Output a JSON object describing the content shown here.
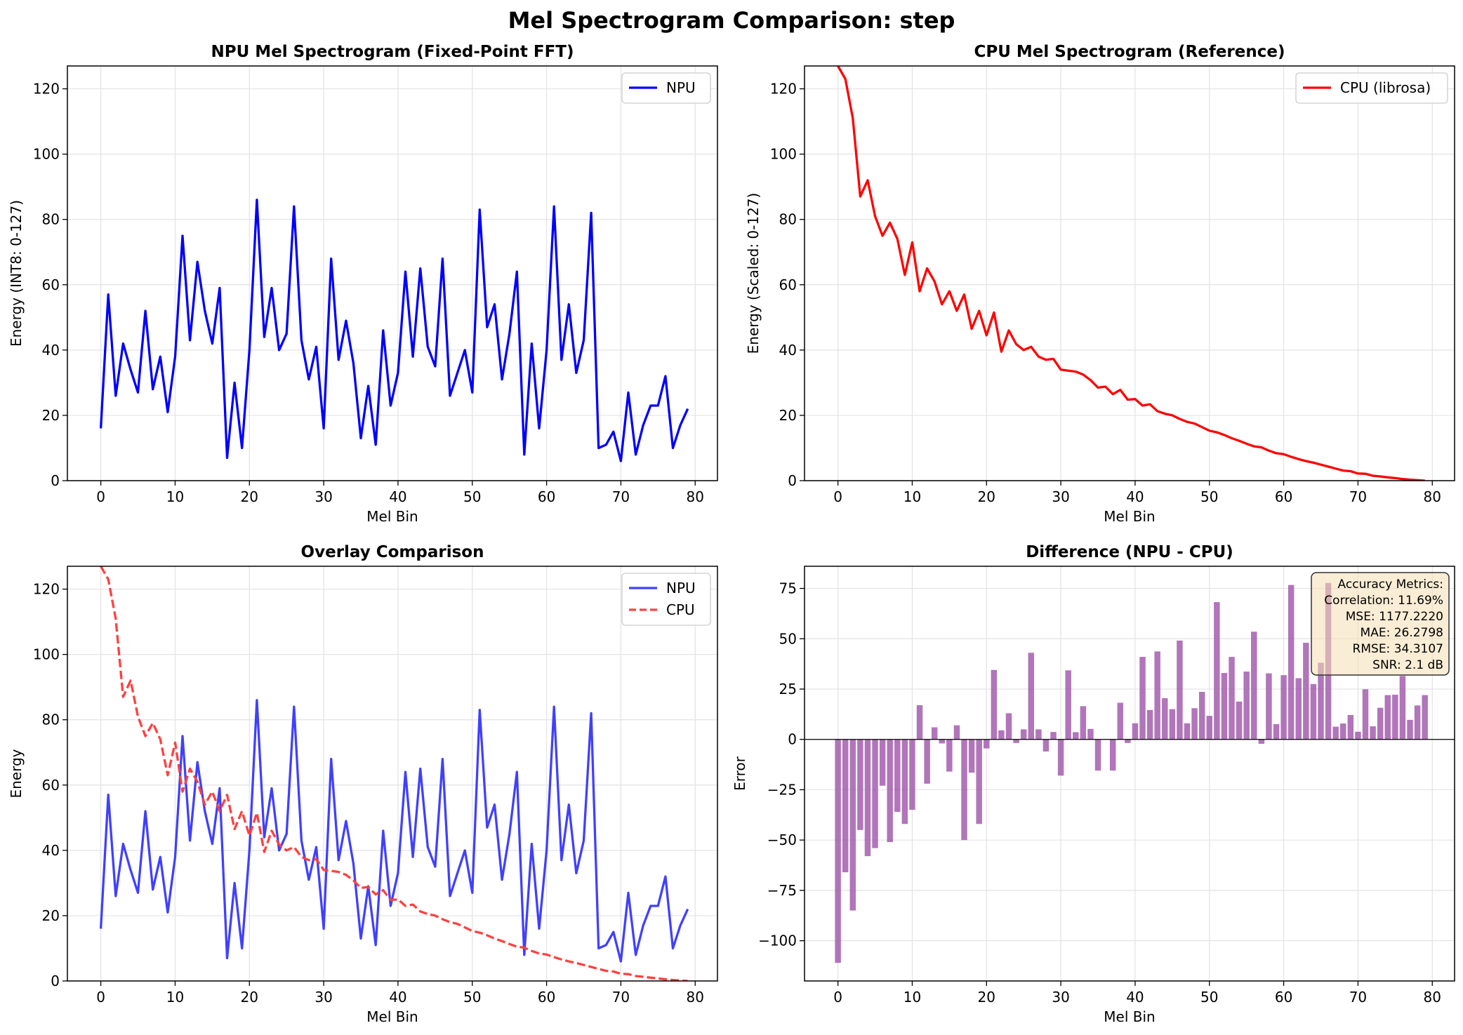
{
  "title": "Mel Spectrogram Comparison: step",
  "chart_data": [
    {
      "type": "line",
      "title": "NPU Mel Spectrogram (Fixed-Point FFT)",
      "xlabel": "Mel Bin",
      "ylabel": "Energy (INT8: 0-127)",
      "xlim": [
        -4.5,
        83
      ],
      "ylim": [
        0,
        127
      ],
      "xticks": [
        0,
        10,
        20,
        30,
        40,
        50,
        60,
        70,
        80
      ],
      "yticks": [
        0,
        20,
        40,
        60,
        80,
        100,
        120
      ],
      "grid": true,
      "legend_position": "upper right",
      "series": [
        {
          "name": "NPU",
          "color": "#0000ff",
          "style": "solid",
          "values": [
            16,
            57,
            26,
            42,
            34,
            27,
            52,
            28,
            38,
            21,
            38,
            75,
            43,
            67,
            52,
            42,
            59,
            7,
            30,
            10,
            40,
            86,
            44,
            59,
            40,
            45,
            84,
            43,
            31,
            41,
            16,
            68,
            37,
            49,
            36,
            13,
            29,
            11,
            46,
            23,
            33,
            64,
            38,
            65,
            41,
            35,
            68,
            26,
            33,
            40,
            27,
            83,
            47,
            54,
            31,
            45,
            64,
            8,
            42,
            16,
            40,
            84,
            37,
            54,
            33,
            43,
            82,
            10,
            11,
            15,
            6,
            27,
            8,
            17,
            23,
            23,
            32,
            10,
            17,
            22
          ]
        }
      ]
    },
    {
      "type": "line",
      "title": "CPU Mel Spectrogram (Reference)",
      "xlabel": "Mel Bin",
      "ylabel": "Energy (Scaled: 0-127)",
      "xlim": [
        -4.5,
        83
      ],
      "ylim": [
        0,
        127
      ],
      "xticks": [
        0,
        10,
        20,
        30,
        40,
        50,
        60,
        70,
        80
      ],
      "yticks": [
        0,
        20,
        40,
        60,
        80,
        100,
        120
      ],
      "grid": true,
      "legend_position": "upper right",
      "series": [
        {
          "name": "CPU (librosa)",
          "color": "#ff0000",
          "style": "solid",
          "values": [
            127,
            123,
            111,
            87,
            92,
            81,
            75,
            79,
            74,
            63,
            73,
            58,
            65,
            61,
            54,
            58,
            52,
            57,
            46.5,
            52,
            44.5,
            51.5,
            39.5,
            46,
            41.8,
            40,
            41,
            38,
            37,
            37.3,
            34,
            33.7,
            33.4,
            32.5,
            30.8,
            28.5,
            28.8,
            26.5,
            27.8,
            24.8,
            25,
            23,
            23.4,
            21.3,
            20.5,
            20,
            18.9,
            18,
            17.5,
            16.4,
            15.3,
            14.8,
            14,
            13,
            12.2,
            11.3,
            10.5,
            10.2,
            9.2,
            8.4,
            8.1,
            7.3,
            6.6,
            6,
            5.5,
            4.9,
            4.3,
            3.7,
            3.1,
            2.9,
            2.2,
            2.1,
            1.5,
            1.3,
            1,
            0.8,
            0.5,
            0.3,
            0.15,
            0
          ]
        }
      ]
    },
    {
      "type": "line",
      "title": "Overlay Comparison",
      "xlabel": "Mel Bin",
      "ylabel": "Energy",
      "xlim": [
        -4.5,
        83
      ],
      "ylim": [
        0,
        127
      ],
      "xticks": [
        0,
        10,
        20,
        30,
        40,
        50,
        60,
        70,
        80
      ],
      "yticks": [
        0,
        20,
        40,
        60,
        80,
        100,
        120
      ],
      "grid": true,
      "legend_position": "upper right",
      "series": [
        {
          "name": "NPU",
          "color": "#4040ff",
          "style": "solid",
          "values": [
            16,
            57,
            26,
            42,
            34,
            27,
            52,
            28,
            38,
            21,
            38,
            75,
            43,
            67,
            52,
            42,
            59,
            7,
            30,
            10,
            40,
            86,
            44,
            59,
            40,
            45,
            84,
            43,
            31,
            41,
            16,
            68,
            37,
            49,
            36,
            13,
            29,
            11,
            46,
            23,
            33,
            64,
            38,
            65,
            41,
            35,
            68,
            26,
            33,
            40,
            27,
            83,
            47,
            54,
            31,
            45,
            64,
            8,
            42,
            16,
            40,
            84,
            37,
            54,
            33,
            43,
            82,
            10,
            11,
            15,
            6,
            27,
            8,
            17,
            23,
            23,
            32,
            10,
            17,
            22
          ]
        },
        {
          "name": "CPU",
          "color": "#ff4040",
          "style": "dashed",
          "values": [
            127,
            123,
            111,
            87,
            92,
            81,
            75,
            79,
            74,
            63,
            73,
            58,
            65,
            61,
            54,
            58,
            52,
            57,
            46.5,
            52,
            44.5,
            51.5,
            39.5,
            46,
            41.8,
            40,
            41,
            38,
            37,
            37.3,
            34,
            33.7,
            33.4,
            32.5,
            30.8,
            28.5,
            28.8,
            26.5,
            27.8,
            24.8,
            25,
            23,
            23.4,
            21.3,
            20.5,
            20,
            18.9,
            18,
            17.5,
            16.4,
            15.3,
            14.8,
            14,
            13,
            12.2,
            11.3,
            10.5,
            10.2,
            9.2,
            8.4,
            8.1,
            7.3,
            6.6,
            6,
            5.5,
            4.9,
            4.3,
            3.7,
            3.1,
            2.9,
            2.2,
            2.1,
            1.5,
            1.3,
            1,
            0.8,
            0.5,
            0.3,
            0.15,
            0
          ]
        }
      ]
    },
    {
      "type": "bar",
      "title": "Difference (NPU - CPU)",
      "xlabel": "Mel Bin",
      "ylabel": "Error",
      "xlim": [
        -4.5,
        83
      ],
      "ylim": [
        -120,
        86
      ],
      "xticks": [
        0,
        10,
        20,
        30,
        40,
        50,
        60,
        70,
        80
      ],
      "yticks": [
        -100,
        -75,
        -50,
        -25,
        0,
        25,
        50,
        75
      ],
      "grid": true,
      "color": "#9b4ea6",
      "values": [
        -111,
        -66,
        -85,
        -45,
        -58,
        -54,
        -23,
        -51,
        -36,
        -42,
        -35,
        17,
        -22,
        6,
        -2,
        -16,
        7,
        -50,
        -16.5,
        -42,
        -4.5,
        34.5,
        4.5,
        13,
        -1.8,
        5,
        43,
        5,
        -6,
        3.7,
        -18,
        34.3,
        3.6,
        16.5,
        5.2,
        -15.5,
        0.2,
        -15.5,
        18.2,
        -1.8,
        8,
        41,
        14.6,
        43.7,
        20.5,
        15,
        49.1,
        8,
        15.5,
        23.6,
        11.7,
        68.2,
        33,
        41,
        18.8,
        33.7,
        53.5,
        -2.2,
        32.8,
        7.6,
        31.9,
        76.7,
        30.4,
        48,
        27.5,
        38.1,
        77.7,
        6.3,
        7.9,
        12.1,
        3.8,
        24.9,
        6.5,
        15.7,
        22,
        22.2,
        31.5,
        9.7,
        16.85,
        22
      ]
    }
  ],
  "metrics": {
    "lines": [
      "Accuracy Metrics:",
      "Correlation: 11.69%",
      "MSE: 1177.2220",
      "MAE: 26.2798",
      "RMSE: 34.3107",
      "SNR: 2.1 dB"
    ]
  }
}
